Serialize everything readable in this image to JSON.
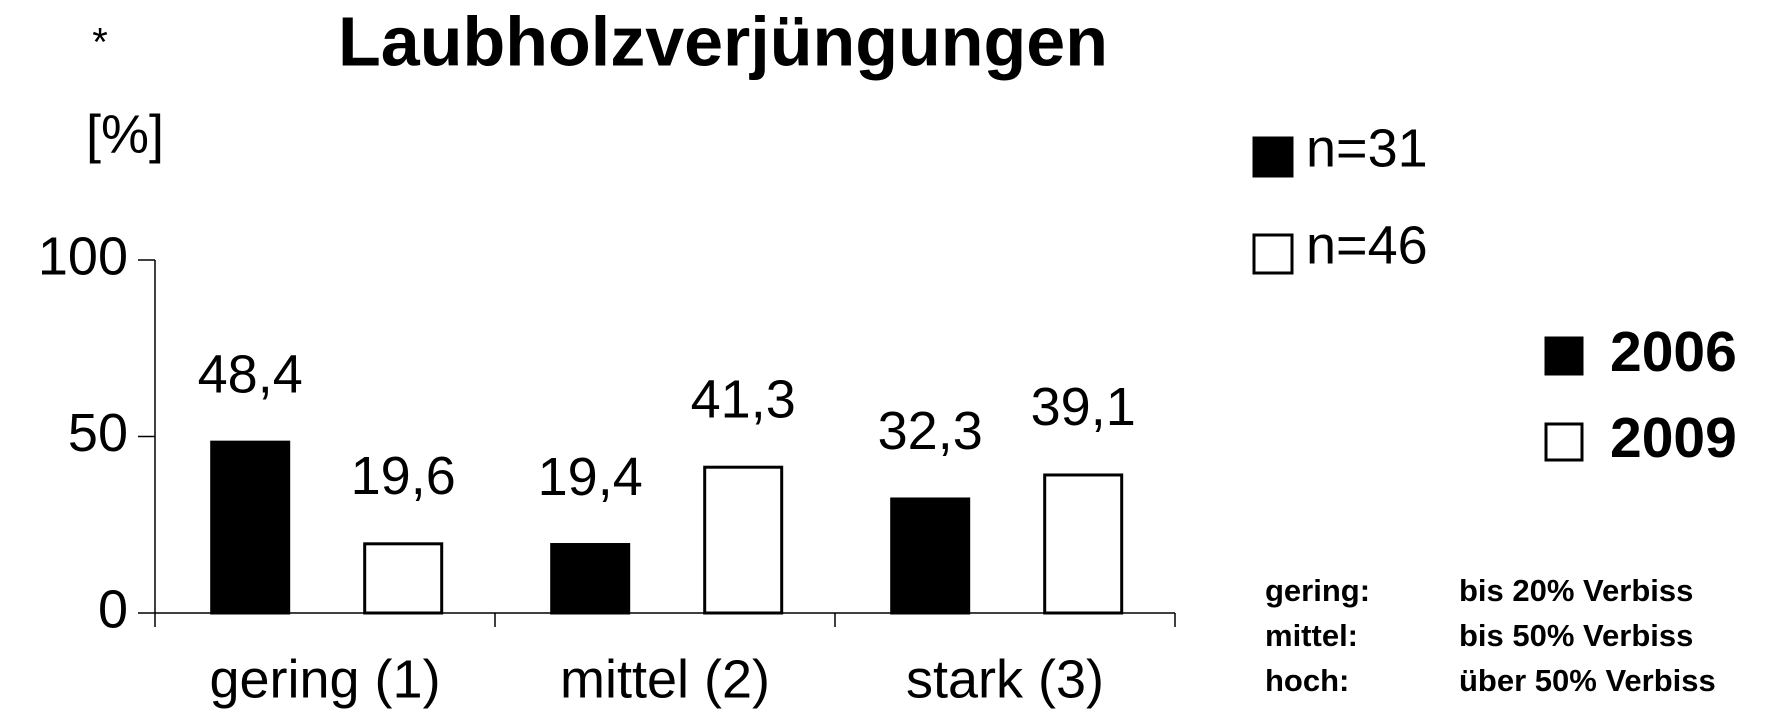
{
  "chart_data": {
    "type": "bar",
    "title": "Laubholzverjüngungen",
    "marker": "*",
    "y_label": "[%]",
    "categories": [
      "gering (1)",
      "mittel (2)",
      "stark (3)"
    ],
    "series": [
      {
        "name": "2006",
        "n_label": "n=31",
        "color": "#000000",
        "values": [
          48.4,
          19.4,
          32.3
        ],
        "value_labels": [
          "48,4",
          "19,4",
          "32,3"
        ]
      },
      {
        "name": "2009",
        "n_label": "n=46",
        "color": "#ffffff",
        "values": [
          19.6,
          41.3,
          39.1
        ],
        "value_labels": [
          "19,6",
          "41,3",
          "39,1"
        ]
      }
    ],
    "ylim": [
      0,
      100
    ],
    "yticks": [
      0,
      50,
      100
    ],
    "legend_color": "#3a3ac4",
    "notes": [
      [
        "gering:",
        "bis 20% Verbiss"
      ],
      [
        "mittel:",
        "bis 50% Verbiss"
      ],
      [
        "hoch:",
        "über 50% Verbiss"
      ]
    ]
  }
}
